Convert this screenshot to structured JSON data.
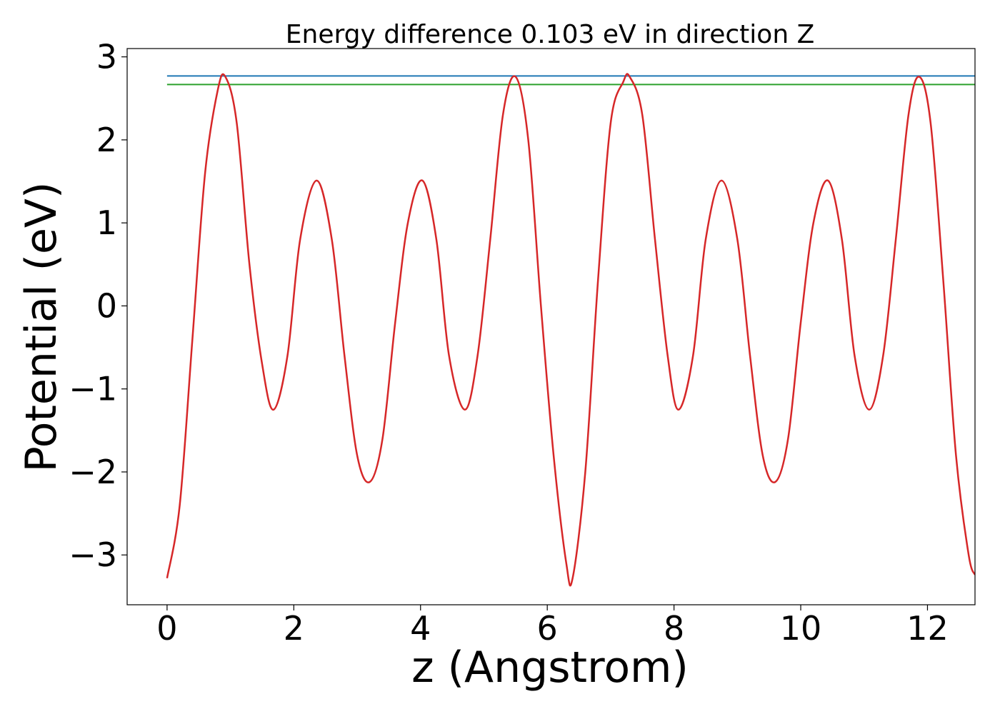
{
  "chart_data": {
    "type": "line",
    "title": "Energy difference 0.103 eV in direction Z",
    "xlabel": "z (Angstrom)",
    "ylabel": "Potential (eV)",
    "xlim": [
      -0.63,
      12.75
    ],
    "ylim": [
      -3.6,
      3.1
    ],
    "xticks": [
      0,
      2,
      4,
      6,
      8,
      10,
      12
    ],
    "yticks": [
      -3,
      -2,
      -1,
      0,
      1,
      2,
      3
    ],
    "xtick_labels": [
      "0",
      "2",
      "4",
      "6",
      "8",
      "10",
      "12"
    ],
    "ytick_labels": [
      "−3",
      "−2",
      "−1",
      "0",
      "1",
      "2",
      "3"
    ],
    "grid": false,
    "series": [
      {
        "color": "#d62728",
        "x": [
          0.0,
          0.2,
          0.4,
          0.6,
          0.8,
          0.92,
          1.1,
          1.3,
          1.5,
          1.68,
          1.9,
          2.1,
          2.36,
          2.6,
          2.8,
          3.0,
          3.2,
          3.4,
          3.6,
          3.8,
          4.03,
          4.25,
          4.45,
          4.7,
          4.9,
          5.1,
          5.3,
          5.5,
          5.7,
          5.9,
          6.1,
          6.3,
          6.4,
          6.6,
          6.8,
          7.0,
          7.2,
          7.3,
          7.5,
          7.7,
          7.9,
          8.07,
          8.3,
          8.5,
          8.75,
          9.0,
          9.2,
          9.4,
          9.6,
          9.8,
          10.0,
          10.2,
          10.43,
          10.65,
          10.85,
          11.08,
          11.3,
          11.5,
          11.7,
          11.87,
          12.05,
          12.25,
          12.45,
          12.65,
          12.75
        ],
        "y": [
          -3.28,
          -2.4,
          -0.4,
          1.6,
          2.6,
          2.76,
          2.2,
          0.5,
          -0.7,
          -1.25,
          -0.6,
          0.8,
          1.51,
          0.8,
          -0.6,
          -1.8,
          -2.12,
          -1.6,
          -0.2,
          1.0,
          1.51,
          0.8,
          -0.6,
          -1.25,
          -0.6,
          0.8,
          2.3,
          2.76,
          2.0,
          0.0,
          -1.8,
          -3.1,
          -3.28,
          -2.0,
          0.3,
          2.2,
          2.7,
          2.76,
          2.3,
          0.8,
          -0.6,
          -1.25,
          -0.6,
          0.8,
          1.51,
          0.8,
          -0.6,
          -1.8,
          -2.12,
          -1.6,
          -0.2,
          1.0,
          1.51,
          0.8,
          -0.6,
          -1.25,
          -0.6,
          0.8,
          2.3,
          2.76,
          2.2,
          0.3,
          -1.8,
          -3.0,
          -3.24
        ]
      },
      {
        "color": "#1f77b4",
        "x": [
          0.0,
          12.75
        ],
        "y": [
          2.77,
          2.77
        ]
      },
      {
        "color": "#2ca02c",
        "x": [
          0.0,
          12.75
        ],
        "y": [
          2.667,
          2.667
        ]
      }
    ]
  }
}
